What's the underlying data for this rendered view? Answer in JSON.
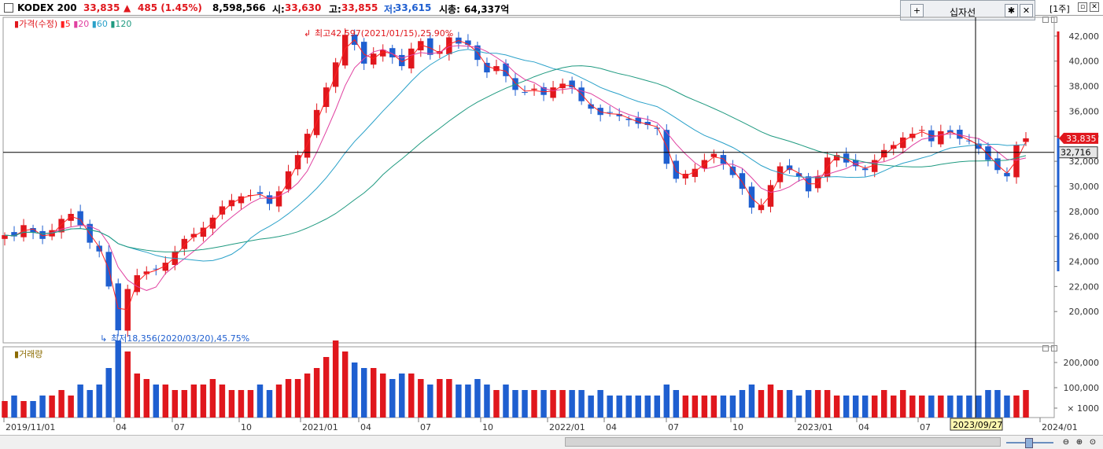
{
  "header": {
    "symbol": "KODEX 200",
    "price": "33,835",
    "change_arrow": "▲",
    "change": "485 (1.45%)",
    "volume": "8,598,566",
    "open_label": "시:",
    "open": "33,630",
    "high_label": "고:",
    "high": "33,855",
    "low_label": "저:",
    "low": "33,615",
    "mcap_label": "시총:",
    "mcap": "64,337억"
  },
  "crosshair_box": {
    "label": "십자선"
  },
  "period_label": "[1주]",
  "legend": {
    "price": "가격(수정)",
    "ma5": "5",
    "ma20": "20",
    "ma60": "60",
    "ma120": "120"
  },
  "volume_legend": "거래량",
  "annotations": {
    "high": "최고42,597(2021/01/15),25.90%",
    "low": "최저18,356(2020/03/20),45.75%"
  },
  "price_axis": [
    "42,000",
    "40,000",
    "38,000",
    "36,000",
    "34,000",
    "32,000",
    "30,000",
    "28,000",
    "26,000",
    "24,000",
    "22,000",
    "20,000"
  ],
  "volume_axis": [
    "200,000",
    "100,000",
    "× 1000"
  ],
  "current_price_tag": "33,835",
  "crosshair_price": "32,716",
  "crosshair_date": "2023/09/27",
  "x_axis": [
    "2019/11/01",
    "04",
    "07",
    "10",
    "2021/01",
    "04",
    "07",
    "10",
    "2022/01",
    "04",
    "07",
    "10",
    "2023/01",
    "04",
    "07",
    "10",
    "2024/01"
  ],
  "colors": {
    "up": "#e0171d",
    "down": "#1f5fd0",
    "ma5": "#ff2020",
    "ma20": "#e040a0",
    "ma60": "#2aa1c9",
    "ma120": "#1f9a80"
  },
  "chart_data": {
    "type": "candlestick",
    "price_range": [
      17500,
      43500
    ],
    "weekly_close": [
      26100,
      26000,
      26900,
      26300,
      25800,
      26500,
      27400,
      27800,
      26900,
      25500,
      24800,
      22000,
      18500,
      21800,
      22900,
      23200,
      23400,
      23900,
      24800,
      25800,
      26200,
      26700,
      27500,
      28400,
      28900,
      29200,
      29300,
      29400,
      28600,
      29600,
      31200,
      32500,
      34200,
      36100,
      37900,
      39900,
      42100,
      41300,
      39800,
      40600,
      40900,
      40300,
      39600,
      41000,
      41600,
      40500,
      40800,
      41900,
      41400,
      41300,
      40100,
      39100,
      39600,
      38800,
      37700,
      37500,
      37800,
      37300,
      37900,
      38200,
      37900,
      36800,
      36200,
      35700,
      35900,
      35600,
      35300,
      35000,
      34900,
      34600,
      31800,
      30600,
      31000,
      31400,
      32100,
      32600,
      31800,
      30900,
      29800,
      28300,
      28500,
      30100,
      31600,
      31300,
      30800,
      29600,
      30800,
      32300,
      32500,
      31900,
      31600,
      31300,
      32100,
      32900,
      33300,
      33900,
      34200,
      34500,
      33600,
      34400,
      34300,
      33800,
      33600,
      33000,
      32100,
      31300,
      30800,
      33300,
      33835
    ]
  }
}
